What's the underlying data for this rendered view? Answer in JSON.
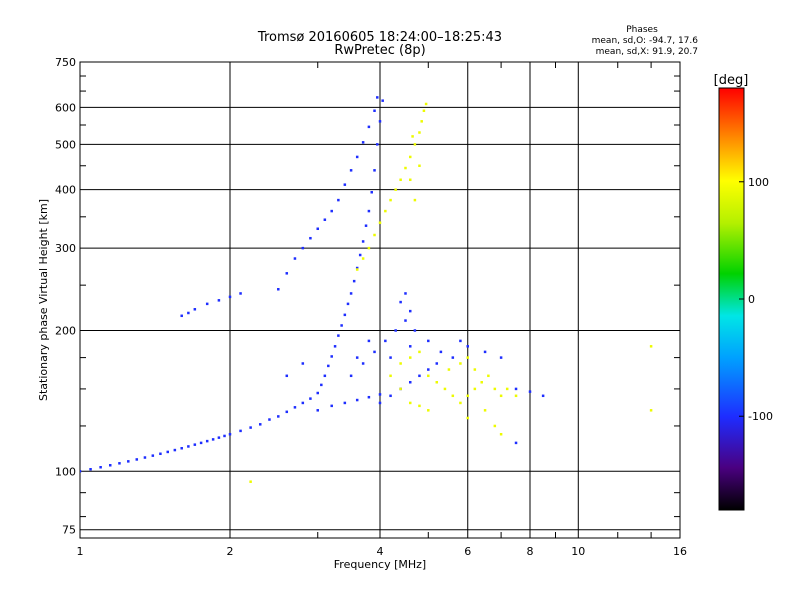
{
  "header": {
    "title_line1": "Tromsø 20160605 18:24:00–18:25:43",
    "title_line2": "RwPretec (8p)",
    "stats_heading": "Phases",
    "stats_line1": "mean, sd,O: -94.7, 17.6",
    "stats_line2": "mean, sd,X:  91.9, 20.7"
  },
  "colorbar": {
    "unit_label": "[deg]",
    "tick_labels": [
      "100",
      "0",
      "-100"
    ],
    "tick_values": [
      100,
      0,
      -100
    ],
    "range": [
      -180,
      180
    ]
  },
  "chart_data": {
    "type": "scatter",
    "xlabel": "Frequency [MHz]",
    "ylabel": "Stationary phase Virtual Height [km]",
    "x_scale": "log",
    "y_scale": "log",
    "xlim": [
      1,
      16
    ],
    "ylim": [
      72,
      750
    ],
    "x_ticks": [
      1,
      2,
      4,
      6,
      8,
      10,
      16
    ],
    "x_tick_labels": [
      "1",
      "2",
      "4",
      "6",
      "8",
      "10",
      "16"
    ],
    "y_ticks": [
      75,
      100,
      200,
      300,
      400,
      500,
      600,
      750
    ],
    "y_tick_labels": [
      "75",
      "100",
      "200",
      "300",
      "400",
      "500",
      "600",
      "750"
    ],
    "grid": true,
    "series": [
      {
        "mode": "O",
        "color_phase": -100,
        "points": [
          [
            1.0,
            100
          ],
          [
            1.05,
            101
          ],
          [
            1.1,
            102
          ],
          [
            1.15,
            103
          ],
          [
            1.2,
            104
          ],
          [
            1.25,
            105
          ],
          [
            1.3,
            106
          ],
          [
            1.35,
            107
          ],
          [
            1.4,
            108
          ],
          [
            1.45,
            109
          ],
          [
            1.5,
            110
          ],
          [
            1.55,
            111
          ],
          [
            1.6,
            112
          ],
          [
            1.65,
            113
          ],
          [
            1.7,
            114
          ],
          [
            1.75,
            115
          ],
          [
            1.8,
            116
          ],
          [
            1.85,
            117
          ],
          [
            1.9,
            118
          ],
          [
            1.95,
            119
          ],
          [
            2.0,
            120
          ],
          [
            2.1,
            122
          ],
          [
            2.2,
            124
          ],
          [
            2.3,
            126
          ],
          [
            2.4,
            129
          ],
          [
            2.5,
            131
          ],
          [
            2.6,
            134
          ],
          [
            2.7,
            137
          ],
          [
            2.8,
            140
          ],
          [
            2.9,
            143
          ],
          [
            3.0,
            147
          ],
          [
            3.05,
            153
          ],
          [
            3.1,
            160
          ],
          [
            3.15,
            168
          ],
          [
            3.2,
            176
          ],
          [
            3.25,
            185
          ],
          [
            3.3,
            195
          ],
          [
            3.35,
            205
          ],
          [
            3.4,
            216
          ],
          [
            3.45,
            228
          ],
          [
            3.5,
            240
          ],
          [
            3.55,
            255
          ],
          [
            3.6,
            272
          ],
          [
            3.65,
            290
          ],
          [
            3.7,
            310
          ],
          [
            3.75,
            335
          ],
          [
            3.8,
            360
          ],
          [
            3.85,
            395
          ],
          [
            3.9,
            440
          ],
          [
            3.95,
            500
          ],
          [
            4.0,
            560
          ],
          [
            4.05,
            620
          ],
          [
            2.5,
            245
          ],
          [
            2.6,
            265
          ],
          [
            2.7,
            285
          ],
          [
            2.8,
            300
          ],
          [
            2.9,
            315
          ],
          [
            3.0,
            330
          ],
          [
            3.1,
            345
          ],
          [
            3.2,
            360
          ],
          [
            3.3,
            380
          ],
          [
            3.4,
            410
          ],
          [
            3.5,
            440
          ],
          [
            3.6,
            470
          ],
          [
            3.7,
            505
          ],
          [
            3.8,
            545
          ],
          [
            3.9,
            590
          ],
          [
            3.95,
            630
          ],
          [
            1.6,
            215
          ],
          [
            1.65,
            218
          ],
          [
            1.7,
            222
          ],
          [
            1.8,
            228
          ],
          [
            1.9,
            232
          ],
          [
            2.0,
            236
          ],
          [
            2.1,
            240
          ],
          [
            3.5,
            160
          ],
          [
            3.7,
            170
          ],
          [
            3.9,
            180
          ],
          [
            4.1,
            190
          ],
          [
            4.3,
            200
          ],
          [
            4.5,
            210
          ],
          [
            4.7,
            200
          ],
          [
            5.0,
            190
          ],
          [
            5.3,
            180
          ],
          [
            5.6,
            175
          ],
          [
            4.0,
            140
          ],
          [
            4.2,
            145
          ],
          [
            4.4,
            150
          ],
          [
            4.6,
            155
          ],
          [
            4.8,
            160
          ],
          [
            5.0,
            165
          ],
          [
            5.2,
            170
          ],
          [
            4.5,
            240
          ],
          [
            4.6,
            220
          ],
          [
            4.4,
            230
          ],
          [
            3.0,
            135
          ],
          [
            3.2,
            138
          ],
          [
            3.4,
            140
          ],
          [
            3.6,
            142
          ],
          [
            3.8,
            144
          ],
          [
            4.0,
            146
          ],
          [
            5.8,
            190
          ],
          [
            6.0,
            185
          ],
          [
            6.5,
            180
          ],
          [
            7.0,
            175
          ],
          [
            7.5,
            150
          ],
          [
            8.0,
            148
          ],
          [
            8.5,
            145
          ],
          [
            7.5,
            115
          ],
          [
            3.6,
            175
          ],
          [
            3.8,
            190
          ],
          [
            4.2,
            175
          ],
          [
            4.6,
            185
          ],
          [
            2.6,
            160
          ],
          [
            2.8,
            170
          ]
        ]
      },
      {
        "mode": "X",
        "color_phase": 92,
        "points": [
          [
            3.6,
            270
          ],
          [
            3.7,
            285
          ],
          [
            3.8,
            300
          ],
          [
            3.9,
            320
          ],
          [
            4.0,
            340
          ],
          [
            4.1,
            360
          ],
          [
            4.2,
            380
          ],
          [
            4.3,
            400
          ],
          [
            4.4,
            420
          ],
          [
            4.5,
            445
          ],
          [
            4.6,
            470
          ],
          [
            4.7,
            500
          ],
          [
            4.8,
            530
          ],
          [
            4.85,
            560
          ],
          [
            4.9,
            590
          ],
          [
            4.95,
            610
          ],
          [
            4.6,
            420
          ],
          [
            4.7,
            380
          ],
          [
            4.8,
            450
          ],
          [
            4.65,
            520
          ],
          [
            4.4,
            170
          ],
          [
            4.6,
            175
          ],
          [
            4.8,
            180
          ],
          [
            5.0,
            160
          ],
          [
            5.2,
            155
          ],
          [
            5.4,
            150
          ],
          [
            5.6,
            145
          ],
          [
            5.8,
            140
          ],
          [
            6.0,
            145
          ],
          [
            6.2,
            150
          ],
          [
            6.4,
            155
          ],
          [
            6.6,
            160
          ],
          [
            6.8,
            150
          ],
          [
            7.0,
            145
          ],
          [
            7.2,
            150
          ],
          [
            7.5,
            145
          ],
          [
            6.0,
            130
          ],
          [
            6.5,
            135
          ],
          [
            5.5,
            165
          ],
          [
            5.8,
            170
          ],
          [
            6.0,
            175
          ],
          [
            6.2,
            165
          ],
          [
            4.2,
            160
          ],
          [
            4.4,
            150
          ],
          [
            4.6,
            140
          ],
          [
            4.8,
            138
          ],
          [
            5.0,
            135
          ],
          [
            6.8,
            125
          ],
          [
            7.0,
            120
          ],
          [
            2.2,
            95
          ],
          [
            14.0,
            185
          ],
          [
            14.0,
            135
          ]
        ]
      }
    ]
  }
}
